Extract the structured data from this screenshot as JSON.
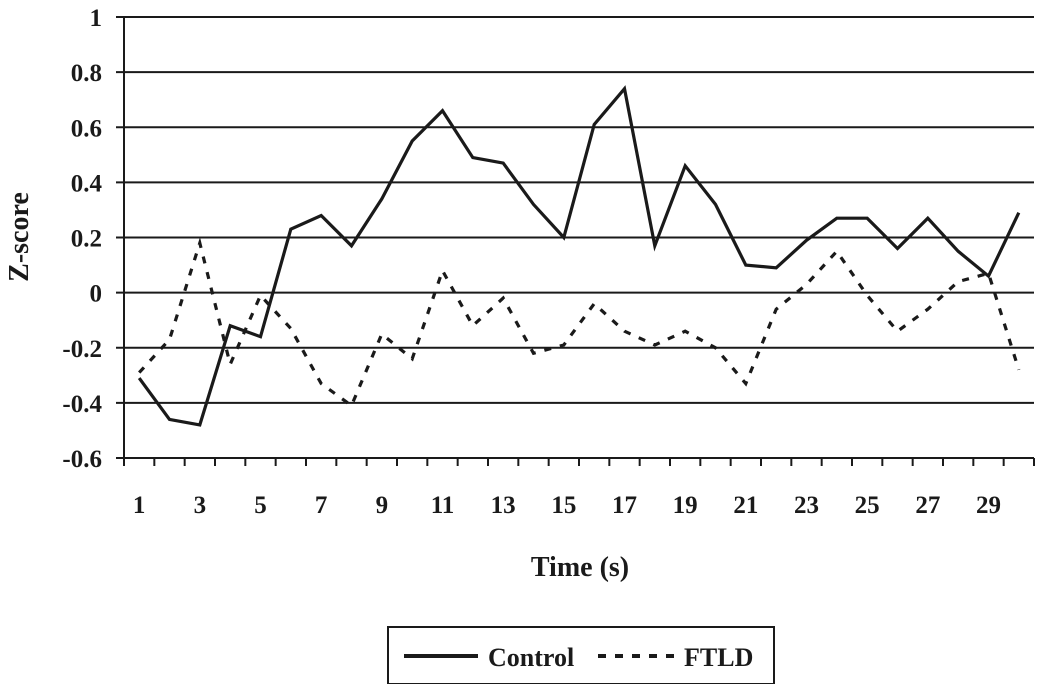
{
  "chart_data": {
    "type": "line",
    "title": "",
    "xlabel": "Time (s)",
    "ylabel": "Z-score",
    "ylim": [
      -0.6,
      1
    ],
    "yticks": [
      "1",
      "0.8",
      "0.6",
      "0.4",
      "0.2",
      "0",
      "-0.2",
      "-0.4",
      "-0.6"
    ],
    "ytick_values": [
      1,
      0.8,
      0.6,
      0.4,
      0.2,
      0,
      -0.2,
      -0.4,
      -0.6
    ],
    "xticks": [
      "1",
      "3",
      "5",
      "7",
      "9",
      "11",
      "13",
      "15",
      "17",
      "19",
      "21",
      "23",
      "25",
      "27",
      "29"
    ],
    "x": [
      1,
      2,
      3,
      4,
      5,
      6,
      7,
      8,
      9,
      10,
      11,
      12,
      13,
      14,
      15,
      16,
      17,
      18,
      19,
      20,
      21,
      22,
      23,
      24,
      25,
      26,
      27,
      28,
      29,
      30
    ],
    "grid": "horizontal",
    "legend_position": "bottom",
    "series": [
      {
        "name": "Control",
        "style": "solid",
        "color": "#1a1a1a",
        "values": [
          -0.31,
          -0.46,
          -0.48,
          -0.12,
          -0.16,
          0.23,
          0.28,
          0.17,
          0.34,
          0.55,
          0.66,
          0.49,
          0.47,
          0.32,
          0.2,
          0.61,
          0.74,
          0.17,
          0.46,
          0.32,
          0.1,
          0.09,
          0.19,
          0.27,
          0.27,
          0.16,
          0.27,
          0.15,
          0.06,
          0.29
        ]
      },
      {
        "name": "FTLD",
        "style": "dashed",
        "color": "#1a1a1a",
        "values": [
          -0.29,
          -0.17,
          0.18,
          -0.26,
          -0.01,
          -0.13,
          -0.33,
          -0.41,
          -0.15,
          -0.24,
          0.08,
          -0.12,
          -0.02,
          -0.22,
          -0.19,
          -0.04,
          -0.14,
          -0.19,
          -0.14,
          -0.2,
          -0.33,
          -0.06,
          0.03,
          0.15,
          -0.01,
          -0.14,
          -0.06,
          0.04,
          0.07,
          -0.28
        ]
      }
    ]
  }
}
